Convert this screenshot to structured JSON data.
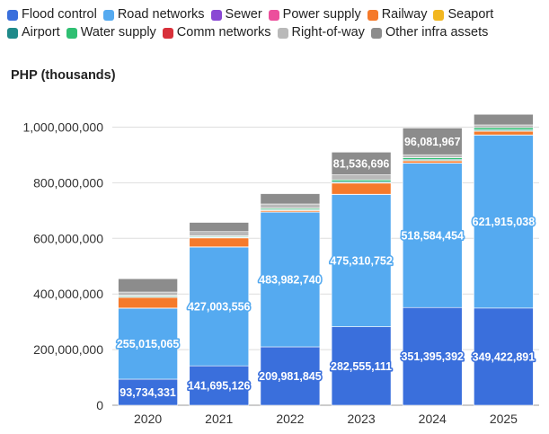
{
  "chart_data": {
    "type": "bar",
    "stacked": true,
    "title": "",
    "ylabel": "PHP (thousands)",
    "xlabel": "",
    "ylim": [
      0,
      1050000000
    ],
    "yticks": [
      0,
      200000000,
      400000000,
      600000000,
      800000000,
      1000000000
    ],
    "ytick_labels": [
      "0",
      "200,000,000",
      "400,000,000",
      "600,000,000",
      "800,000,000",
      "1,000,000,000"
    ],
    "categories": [
      "2020",
      "2021",
      "2022",
      "2023",
      "2024",
      "2025"
    ],
    "series": [
      {
        "name": "Flood control",
        "color": "#3a6fdc",
        "values": [
          93734331,
          141695126,
          209981845,
          282555111,
          351395392,
          349422891
        ],
        "labels": [
          "93,734,331",
          "141,695,126",
          "209,981,845",
          "282,555,111",
          "351,395,392",
          "349,422,891"
        ]
      },
      {
        "name": "Road networks",
        "color": "#55aaf0",
        "values": [
          255015065,
          427003556,
          483982740,
          475310752,
          518584454,
          621915038
        ],
        "labels": [
          "255,015,065",
          "427,003,556",
          "483,982,740",
          "475,310,752",
          "518,584,454",
          "621,915,038"
        ]
      },
      {
        "name": "Sewer",
        "color": "#8a48d4",
        "values": [
          400000,
          400000,
          400000,
          400000,
          400000,
          400000
        ]
      },
      {
        "name": "Power supply",
        "color": "#ec4f9c",
        "values": [
          400000,
          400000,
          400000,
          400000,
          400000,
          400000
        ]
      },
      {
        "name": "Railway",
        "color": "#f57a2b",
        "values": [
          38000000,
          32000000,
          5000000,
          40000000,
          8000000,
          13000000
        ]
      },
      {
        "name": "Seaport",
        "color": "#f2b720",
        "values": [
          1500000,
          1500000,
          1500000,
          1500000,
          1500000,
          1500000
        ]
      },
      {
        "name": "Airport",
        "color": "#1f8a8a",
        "values": [
          3000000,
          3000000,
          3000000,
          4000000,
          4000000,
          4000000
        ]
      },
      {
        "name": "Water supply",
        "color": "#2fbf72",
        "values": [
          2500000,
          3000000,
          4000000,
          6000000,
          6000000,
          7000000
        ]
      },
      {
        "name": "Comm networks",
        "color": "#d8303a",
        "values": [
          400000,
          400000,
          400000,
          400000,
          400000,
          400000
        ]
      },
      {
        "name": "Right-of-way",
        "color": "#b9b9b9",
        "values": [
          12000000,
          15000000,
          15000000,
          18000000,
          10000000,
          10000000
        ]
      },
      {
        "name": "Other infra assets",
        "color": "#8c8c8c",
        "values": [
          48000000,
          33000000,
          37000000,
          81536696,
          96081967,
          38000000
        ],
        "labels": [
          null,
          null,
          null,
          "81,536,696",
          "96,081,967",
          null
        ]
      }
    ],
    "legend_position": "top",
    "grid": true,
    "data_label_style": "white text with series-colored outline"
  }
}
